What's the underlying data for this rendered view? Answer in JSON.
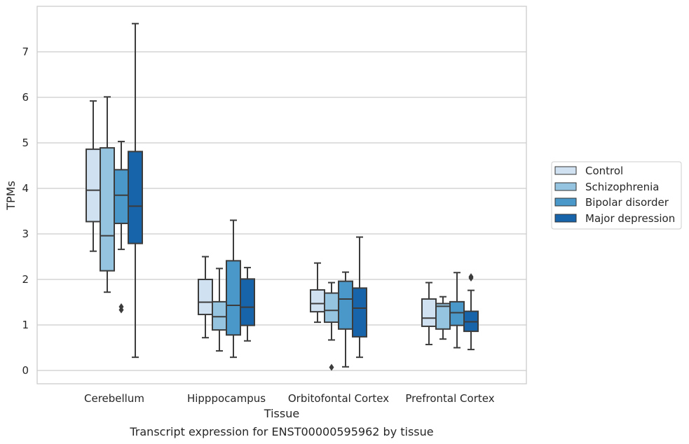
{
  "chart_data": {
    "type": "boxplot",
    "ylabel": "TPMs",
    "xlabel": "Tissue",
    "caption": "Transcript expression for ENST00000595962 by tissue",
    "ylim": [
      -0.3,
      8.1
    ],
    "yticks": [
      0,
      1,
      2,
      3,
      4,
      5,
      6,
      7
    ],
    "grid": "horizontal",
    "legend_position": "right-outside",
    "categories": [
      "Cerebellum",
      "Hipppocampus",
      "Orbitofontal Cortex",
      "Prefrontal Cortex"
    ],
    "series": [
      {
        "name": "Control",
        "color": "#d0e1f2",
        "boxes": [
          {
            "whislo": 2.62,
            "q1": 3.27,
            "med": 3.96,
            "q3": 4.86,
            "whishi": 5.92,
            "fliers": []
          },
          {
            "whislo": 0.72,
            "q1": 1.23,
            "med": 1.5,
            "q3": 2.0,
            "whishi": 2.5,
            "fliers": []
          },
          {
            "whislo": 1.06,
            "q1": 1.29,
            "med": 1.47,
            "q3": 1.77,
            "whishi": 2.36,
            "fliers": []
          },
          {
            "whislo": 0.57,
            "q1": 0.97,
            "med": 1.15,
            "q3": 1.57,
            "whishi": 1.93,
            "fliers": []
          }
        ]
      },
      {
        "name": "Schizophrenia",
        "color": "#94c4df",
        "boxes": [
          {
            "whislo": 1.72,
            "q1": 2.19,
            "med": 2.96,
            "q3": 4.89,
            "whishi": 6.01,
            "fliers": []
          },
          {
            "whislo": 0.43,
            "q1": 0.89,
            "med": 1.18,
            "q3": 1.51,
            "whishi": 2.24,
            "fliers": []
          },
          {
            "whislo": 0.67,
            "q1": 1.06,
            "med": 1.32,
            "q3": 1.7,
            "whishi": 1.93,
            "fliers": [
              0.07
            ]
          },
          {
            "whislo": 0.69,
            "q1": 0.91,
            "med": 1.41,
            "q3": 1.47,
            "whishi": 1.62,
            "fliers": []
          }
        ]
      },
      {
        "name": "Bipolar disorder",
        "color": "#4a98c9",
        "boxes": [
          {
            "whislo": 2.66,
            "q1": 3.23,
            "med": 3.85,
            "q3": 4.41,
            "whishi": 5.03,
            "fliers": [
              1.33,
              1.4
            ]
          },
          {
            "whislo": 0.29,
            "q1": 0.78,
            "med": 1.43,
            "q3": 2.41,
            "whishi": 3.3,
            "fliers": []
          },
          {
            "whislo": 0.08,
            "q1": 0.91,
            "med": 1.57,
            "q3": 1.96,
            "whishi": 2.16,
            "fliers": []
          },
          {
            "whislo": 0.5,
            "q1": 0.99,
            "med": 1.27,
            "q3": 1.51,
            "whishi": 2.15,
            "fliers": []
          }
        ]
      },
      {
        "name": "Major depression",
        "color": "#1764ab",
        "boxes": [
          {
            "whislo": 0.29,
            "q1": 2.79,
            "med": 3.61,
            "q3": 4.81,
            "whishi": 7.62,
            "fliers": []
          },
          {
            "whislo": 0.65,
            "q1": 0.99,
            "med": 1.39,
            "q3": 2.01,
            "whishi": 2.26,
            "fliers": []
          },
          {
            "whislo": 0.29,
            "q1": 0.74,
            "med": 1.37,
            "q3": 1.81,
            "whishi": 2.93,
            "fliers": []
          },
          {
            "whislo": 0.46,
            "q1": 0.86,
            "med": 1.07,
            "q3": 1.3,
            "whishi": 1.76,
            "fliers": [
              2.03,
              2.06
            ]
          }
        ]
      }
    ]
  }
}
